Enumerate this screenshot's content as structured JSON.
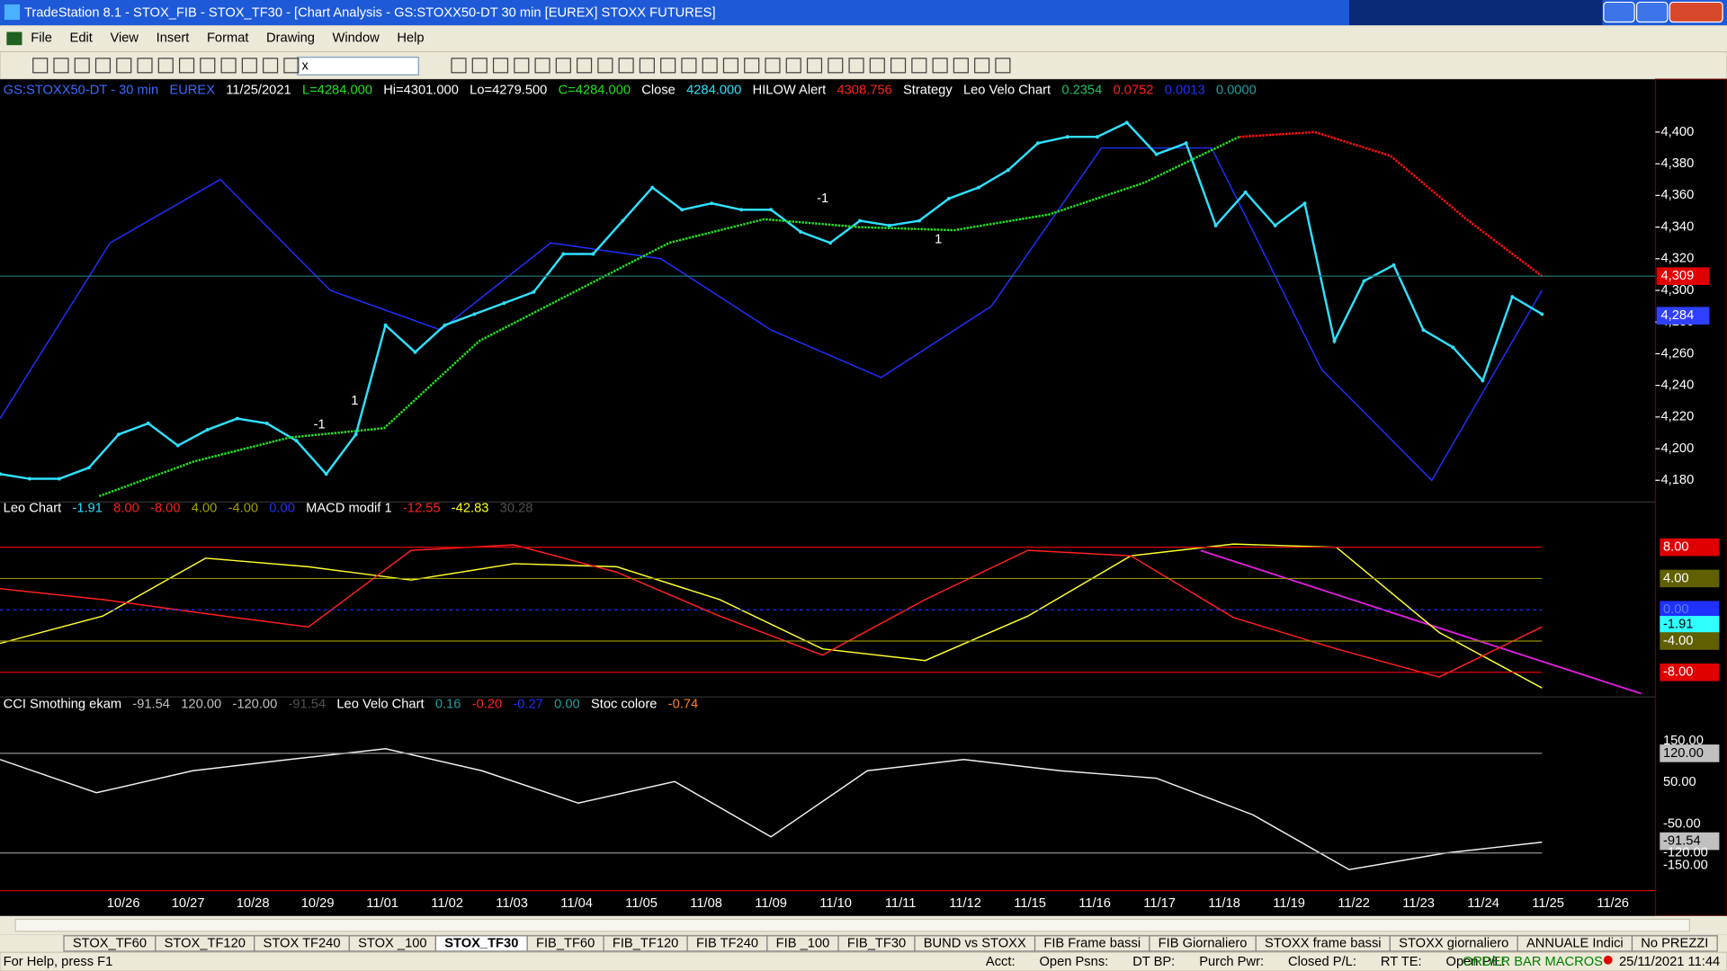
{
  "window": {
    "title": "TradeStation 8.1 - STOX_FIB - STOX_TF30 - [Chart Analysis - GS:STOXX50-DT  30 min  [EUREX] STOXX FUTURES]",
    "menu": [
      "File",
      "Edit",
      "View",
      "Insert",
      "Format",
      "Drawing",
      "Window",
      "Help"
    ],
    "toolbar_combo": "x"
  },
  "price_panel": {
    "header": [
      {
        "text": "GS:STOXX50-DT - 30 min",
        "color": "#3a6cff"
      },
      {
        "text": "EUREX",
        "color": "#3a6cff"
      },
      {
        "text": "11/25/2021",
        "color": "#ffffff"
      },
      {
        "text": "L=4284.000",
        "color": "#20e020"
      },
      {
        "text": "Hi=4301.000",
        "color": "#ffffff"
      },
      {
        "text": "Lo=4279.500",
        "color": "#ffffff"
      },
      {
        "text": "C=4284.000",
        "color": "#20e020"
      },
      {
        "text": "Close",
        "color": "#ffffff"
      },
      {
        "text": "4284.000",
        "color": "#30e0ff"
      },
      {
        "text": "HILOW Alert",
        "color": "#ffffff"
      },
      {
        "text": "4308.756",
        "color": "#ff2020"
      },
      {
        "text": "Strategy",
        "color": "#ffffff"
      },
      {
        "text": "Leo Velo Chart",
        "color": "#ffffff"
      },
      {
        "text": "0.2354",
        "color": "#20c060"
      },
      {
        "text": "0.0752",
        "color": "#ff2020"
      },
      {
        "text": "0.0013",
        "color": "#2030ff"
      },
      {
        "text": "0.0000",
        "color": "#20a0a0"
      }
    ],
    "ylim": [
      4167,
      4432
    ],
    "yticks": [
      {
        "value": 4180,
        "label": "4,180"
      },
      {
        "value": 4200,
        "label": "4,200"
      },
      {
        "value": 4220,
        "label": "4,220"
      },
      {
        "value": 4240,
        "label": "4,240"
      },
      {
        "value": 4260,
        "label": "4,260"
      },
      {
        "value": 4280,
        "label": "4,280"
      },
      {
        "value": 4300,
        "label": "4,300"
      },
      {
        "value": 4320,
        "label": "4,320"
      },
      {
        "value": 4340,
        "label": "4,340"
      },
      {
        "value": 4360,
        "label": "4,360"
      },
      {
        "value": 4380,
        "label": "4,380"
      },
      {
        "value": 4400,
        "label": "4,400"
      }
    ],
    "markers": [
      {
        "value": 4309,
        "label": "4,309",
        "bg": "#e00000",
        "fg": "#ffffff"
      },
      {
        "value": 4284,
        "label": "4,284",
        "bg": "#3040ff",
        "fg": "#ffffff"
      }
    ],
    "series": [
      {
        "color": "#2030ff",
        "span": "full",
        "values": [
          4219,
          4330,
          4370,
          4300,
          4275,
          4330,
          4320,
          4275,
          4245,
          4290,
          4390,
          4390,
          4250,
          4180,
          4300
        ]
      },
      {
        "color": "#30e0ff",
        "span": "full",
        "values": [
          4184,
          4181,
          4181,
          4188,
          4209,
          4216,
          4202,
          4212,
          4219,
          4216,
          4205,
          4184,
          4209,
          4278,
          4261,
          4278,
          4285,
          4292,
          4299,
          4323,
          4323,
          4344,
          4365,
          4351,
          4355,
          4351,
          4351,
          4337,
          4330,
          4344,
          4341,
          4344,
          4358,
          4365,
          4376,
          4393,
          4397,
          4397,
          4406,
          4386,
          4393,
          4341,
          4362,
          4341,
          4355,
          4268,
          4306,
          4316,
          4275,
          4264,
          4243,
          4296,
          4285
        ]
      },
      {
        "color": "#20e020",
        "span": "hilow_up",
        "values": [
          4170,
          4192,
          4207,
          4213,
          4268,
          4299,
          4330,
          4345,
          4340,
          4338,
          4348,
          4368,
          4397
        ]
      },
      {
        "color": "#ff1010",
        "span": "hilow_down",
        "values": [
          4397,
          4400,
          4385,
          4345,
          4309
        ]
      }
    ],
    "signals": [
      {
        "text": "-1",
        "color": "#ff2020"
      },
      {
        "text": "1",
        "color": "#20e020"
      },
      {
        "text": "-1",
        "color": "#ff2020"
      },
      {
        "text": "1",
        "color": "#20e020"
      }
    ]
  },
  "macd_panel": {
    "header": [
      {
        "text": "Leo Chart",
        "color": "#ffffff"
      },
      {
        "text": "-1.91",
        "color": "#30e0ff"
      },
      {
        "text": "8.00",
        "color": "#ff2020"
      },
      {
        "text": "-8.00",
        "color": "#ff2020"
      },
      {
        "text": "4.00",
        "color": "#a0a000"
      },
      {
        "text": "-4.00",
        "color": "#a0a000"
      },
      {
        "text": "0.00",
        "color": "#2030ff"
      },
      {
        "text": "MACD modif 1",
        "color": "#ffffff"
      },
      {
        "text": "-12.55",
        "color": "#ff2020"
      },
      {
        "text": "-42.83",
        "color": "#ffff20"
      },
      {
        "text": "30.28",
        "color": "#505050"
      }
    ],
    "ylim": [
      -11,
      13.5
    ],
    "levels": [
      {
        "value": 8,
        "label": "8.00",
        "bg": "#e00000",
        "fg": "#ffffff",
        "line": "#e00000"
      },
      {
        "value": 4,
        "label": "4.00",
        "bg": "#606000",
        "fg": "#ffffff",
        "line": "#909000"
      },
      {
        "value": 0,
        "label": "0.00",
        "bg": "#2030ff",
        "fg": "#6080ff",
        "line": "#2030ff"
      },
      {
        "value": -1.91,
        "label": "-1.91",
        "bg": "#30ffff",
        "fg": "#000000",
        "line": ""
      },
      {
        "value": -4,
        "label": "-4.00",
        "bg": "#606000",
        "fg": "#ffffff",
        "line": "#909000"
      },
      {
        "value": -8,
        "label": "-8.00",
        "bg": "#e00000",
        "fg": "#ffffff",
        "line": "#e00000"
      }
    ],
    "series": [
      {
        "color": "#ffff30",
        "span": "full",
        "values": [
          -4.3,
          -0.8,
          6.6,
          5.5,
          3.8,
          5.9,
          5.5,
          1.3,
          -5,
          -6.5,
          -0.8,
          6.9,
          8.4,
          8,
          -2.9,
          -10
        ]
      },
      {
        "color": "#ff2020",
        "span": "full",
        "values": [
          2.7,
          1.3,
          -0.5,
          -2.2,
          7.6,
          8.3,
          4.8,
          -0.8,
          -5.8,
          1.3,
          7.6,
          6.9,
          -1,
          -5,
          -8.6,
          -2.2
        ]
      }
    ]
  },
  "cci_panel": {
    "header": [
      {
        "text": "CCI Smothing ekam",
        "color": "#ffffff"
      },
      {
        "text": "-91.54",
        "color": "#c0c0c0"
      },
      {
        "text": "120.00",
        "color": "#c0c0c0"
      },
      {
        "text": "-120.00",
        "color": "#c0c0c0"
      },
      {
        "text": "-91.54",
        "color": "#505050"
      },
      {
        "text": "Leo Velo Chart",
        "color": "#ffffff"
      },
      {
        "text": "0.16",
        "color": "#20a0a0"
      },
      {
        "text": "-0.20",
        "color": "#ff2020"
      },
      {
        "text": "-0.27",
        "color": "#2030ff"
      },
      {
        "text": "0.00",
        "color": "#20a0a0"
      },
      {
        "text": "Stoc colore",
        "color": "#ffffff"
      },
      {
        "text": "-0.74",
        "color": "#ff8020"
      }
    ],
    "ylim": [
      -208,
      248
    ],
    "levels": [
      {
        "value": 150,
        "label": "150.00",
        "bg": "",
        "fg": "#ffffff",
        "line": ""
      },
      {
        "value": 120,
        "label": "120.00",
        "bg": "#c0c0c0",
        "fg": "#000000",
        "line": "#909090"
      },
      {
        "value": 50,
        "label": "50.00",
        "bg": "",
        "fg": "#ffffff",
        "line": ""
      },
      {
        "value": -50,
        "label": "-50.00",
        "bg": "",
        "fg": "#ffffff",
        "line": ""
      },
      {
        "value": -91.54,
        "label": "-91.54",
        "bg": "#c0c0c0",
        "fg": "#000000",
        "line": ""
      },
      {
        "value": -120,
        "label": "-120.00",
        "bg": "",
        "fg": "#ffffff",
        "line": "#909090"
      },
      {
        "value": -150,
        "label": "-150.00",
        "bg": "",
        "fg": "#ffffff",
        "line": ""
      }
    ],
    "series": [
      {
        "color": "#f0f0f0",
        "span": "full",
        "values": [
          105,
          25,
          78,
          105,
          131,
          78,
          0,
          52,
          -81,
          78,
          105,
          78,
          60,
          -28,
          -160,
          -120,
          -94
        ]
      }
    ]
  },
  "dates": [
    "10/26",
    "10/27",
    "10/28",
    "10/29",
    "11/01",
    "11/02",
    "11/03",
    "11/04",
    "11/05",
    "11/08",
    "11/09",
    "11/10",
    "11/11",
    "11/12",
    "11/15",
    "11/16",
    "11/17",
    "11/18",
    "11/19",
    "11/22",
    "11/23",
    "11/24",
    "11/25",
    "11/26"
  ],
  "tabs": [
    "STOX_TF60",
    "STOX_TF120",
    "STOX TF240",
    "STOX _100",
    "STOX_TF30",
    "FIB_TF60",
    "FIB_TF120",
    "FIB TF240",
    "FIB _100",
    "FIB_TF30",
    "BUND vs STOXX",
    "FIB Frame bassi",
    "FIB Giornaliero",
    "STOXX frame bassi",
    "STOXX giornaliero",
    "ANNUALE Indici",
    "No PREZZI"
  ],
  "active_tab": 4,
  "status": {
    "help": "For Help, press F1",
    "fields": [
      "Acct:",
      "Open Psns:",
      "DT BP:",
      "Purch Pwr:",
      "Closed P/L:",
      "RT TE:",
      "Open P/L:"
    ],
    "macros": "ORDER BAR MACROS",
    "clock": "25/11/2021 11:44"
  }
}
